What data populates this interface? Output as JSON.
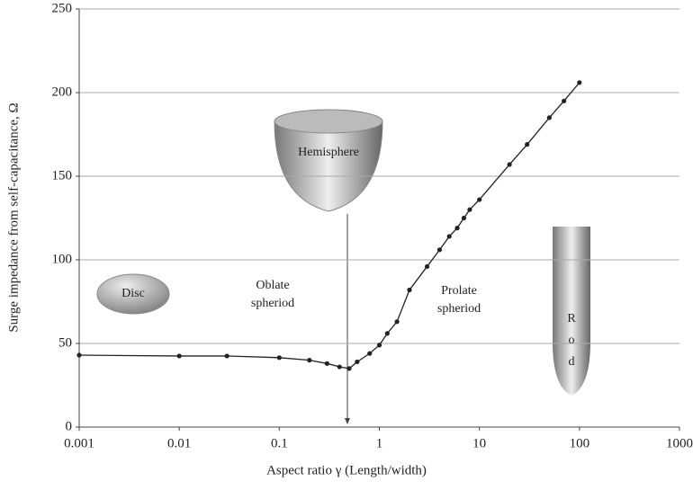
{
  "chart_data": {
    "type": "line",
    "x_label": "Aspect ratio γ (Length/width)",
    "y_label": "Surge impedance from self-capacitance, Ω",
    "x_scale": "log",
    "grid": true,
    "xlim": [
      0.001,
      1000
    ],
    "xticks": [
      0.001,
      0.01,
      0.1,
      1,
      10,
      100,
      1000
    ],
    "ylim": [
      0,
      250
    ],
    "yticks": [
      0,
      50,
      100,
      150,
      200,
      250
    ],
    "series": [
      {
        "color": "#222222",
        "x": [
          0.001,
          0.01,
          0.03,
          0.1,
          0.2,
          0.3,
          0.4,
          0.5,
          0.6,
          0.8,
          1,
          1.2,
          1.5,
          2,
          3,
          4,
          5,
          6,
          7,
          8,
          10,
          20,
          30,
          50,
          70,
          100
        ],
        "values": [
          43,
          42.5,
          42.5,
          41.5,
          40,
          38,
          36,
          35,
          39,
          44,
          49,
          56,
          63,
          82,
          96,
          106,
          114,
          119,
          125,
          130,
          136,
          157,
          169,
          185,
          195,
          206
        ]
      }
    ],
    "annotations": [
      {
        "lines": [
          "Disc"
        ]
      },
      {
        "lines": [
          "Oblate",
          "spheriod"
        ]
      },
      {
        "lines": [
          "Hemisphere"
        ]
      },
      {
        "lines": [
          "Prolate",
          "spheriod"
        ]
      },
      {
        "lines": [
          "R",
          "o",
          "d"
        ]
      }
    ]
  }
}
